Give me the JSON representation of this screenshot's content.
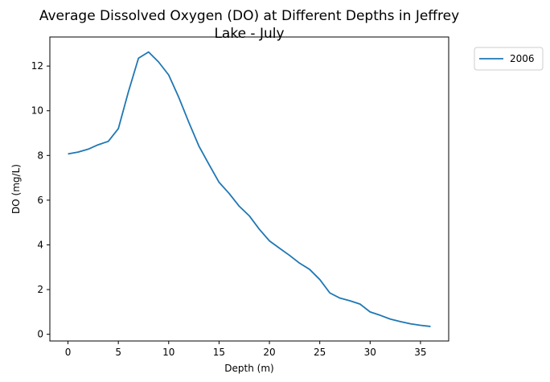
{
  "chart_data": {
    "type": "line",
    "title_lines": [
      "Average Dissolved Oxygen (DO) at Different Depths in Jeffrey",
      "Lake - July"
    ],
    "xlabel": "Depth (m)",
    "ylabel": "DO (mg/L)",
    "xlim": [
      -1.8,
      37.8
    ],
    "ylim": [
      -0.3,
      13.3
    ],
    "xticks": [
      0,
      5,
      10,
      15,
      20,
      25,
      30,
      35
    ],
    "yticks": [
      0,
      2,
      4,
      6,
      8,
      10,
      12
    ],
    "grid": false,
    "legend_position": "outside-top-right",
    "series": [
      {
        "name": "2006",
        "color": "#1f77b4",
        "x": [
          0,
          1,
          2,
          3,
          4,
          5,
          6,
          7,
          8,
          9,
          10,
          11,
          12,
          13,
          14,
          15,
          16,
          17,
          18,
          19,
          20,
          21,
          22,
          23,
          24,
          25,
          26,
          27,
          28,
          29,
          30,
          31,
          32,
          33,
          34,
          35,
          36
        ],
        "y": [
          8.07,
          8.15,
          8.28,
          8.48,
          8.63,
          9.2,
          10.85,
          12.35,
          12.63,
          12.18,
          11.6,
          10.6,
          9.48,
          8.42,
          7.6,
          6.8,
          6.3,
          5.73,
          5.3,
          4.7,
          4.18,
          3.85,
          3.53,
          3.18,
          2.9,
          2.45,
          1.85,
          1.62,
          1.5,
          1.35,
          1.0,
          0.85,
          0.68,
          0.57,
          0.47,
          0.4,
          0.35
        ]
      }
    ]
  }
}
